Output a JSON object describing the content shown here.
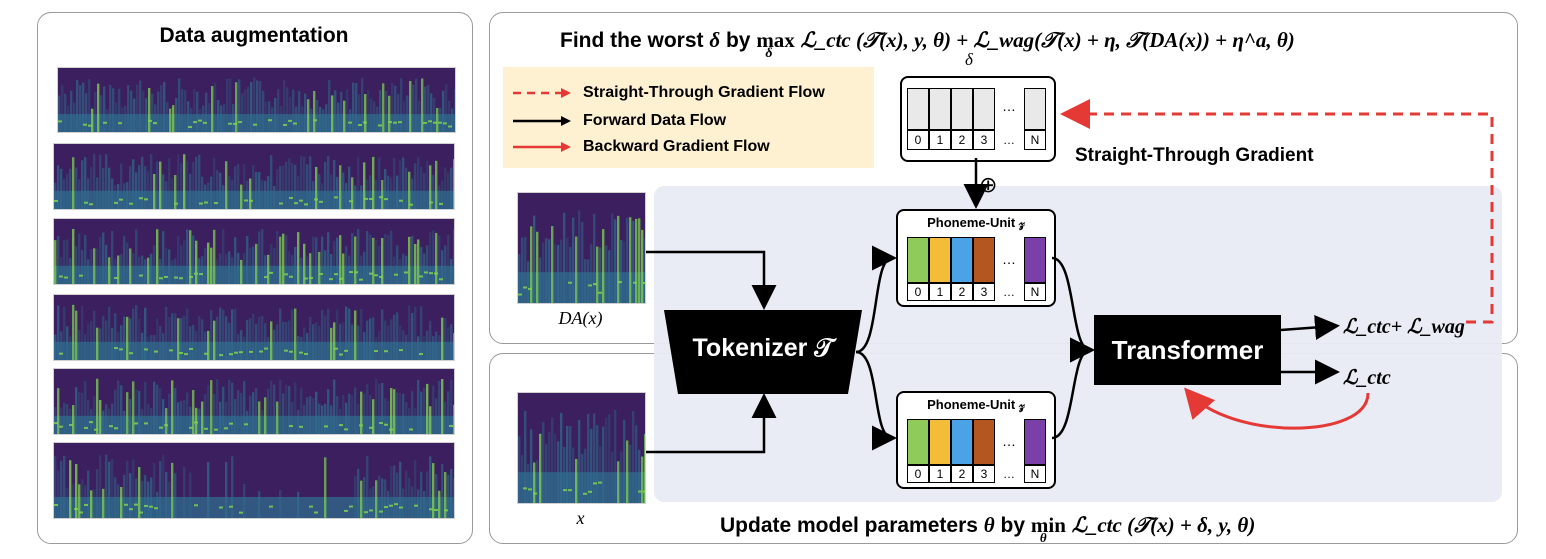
{
  "left_panel": {
    "title": "Data augmentation"
  },
  "top_formula": {
    "prefix": "Find the worst",
    "delta": "δ",
    "by": "by",
    "max": "max",
    "max_sub": "δ",
    "expression": "ℒ_ctc (𝒯(x), y, θ) + ℒ_wag(𝒯(x) + η, 𝒯(DA(x)) + η^a, θ)",
    "delta_label": "δ"
  },
  "bottom_formula": {
    "prefix": "Update model parameters",
    "theta": "θ",
    "by": "by",
    "min": "min",
    "min_sub": "θ",
    "expression": "ℒ_ctc (𝒯(x) + δ, y, θ)"
  },
  "legend": {
    "items": [
      {
        "label": "Straight-Through Gradient Flow",
        "style": "dashed",
        "color": "#e53935"
      },
      {
        "label": "Forward Data Flow",
        "style": "solid",
        "color": "#000000"
      },
      {
        "label": "Backward Gradient Flow",
        "style": "solid",
        "color": "#e53935"
      }
    ]
  },
  "st_gradient_label": "Straight-Through Gradient",
  "oplus": "⊕",
  "delta_vector": {
    "indices": [
      "0",
      "1",
      "2",
      "3",
      "…",
      "N"
    ],
    "dots": "…"
  },
  "phoneme_top": {
    "title": "Phoneme-Unit 𝓏",
    "indices": [
      "0",
      "1",
      "2",
      "3",
      "…",
      "N"
    ],
    "colors": [
      "#8fcb5a",
      "#f3bd3a",
      "#4aa3e6",
      "#b3561f",
      "#7a3fa8"
    ],
    "dots": "…"
  },
  "phoneme_bottom": {
    "title": "Phoneme-Unit 𝓏",
    "indices": [
      "0",
      "1",
      "2",
      "3",
      "…",
      "N"
    ],
    "colors": [
      "#8fcb5a",
      "#f3bd3a",
      "#4aa3e6",
      "#b3561f",
      "#7a3fa8"
    ],
    "dots": "…"
  },
  "tokenizer": {
    "label": "Tokenizer 𝒯"
  },
  "transformer": {
    "label": "Transformer"
  },
  "input_labels": {
    "da": "DA(x)",
    "x": "x"
  },
  "loss_top": "ℒ_ctc+ ℒ_wag",
  "loss_bottom": "ℒ_ctc",
  "colors": {
    "panel_border": "#9a9a9a",
    "shaded_region": "#e8eaf4",
    "legend_bg": "#fdf1d2",
    "red": "#e53935",
    "spectrogram_dark": "#3b1f5e",
    "spectrogram_mid": "#2f6f8e",
    "spectrogram_bright": "#7fd34e"
  }
}
